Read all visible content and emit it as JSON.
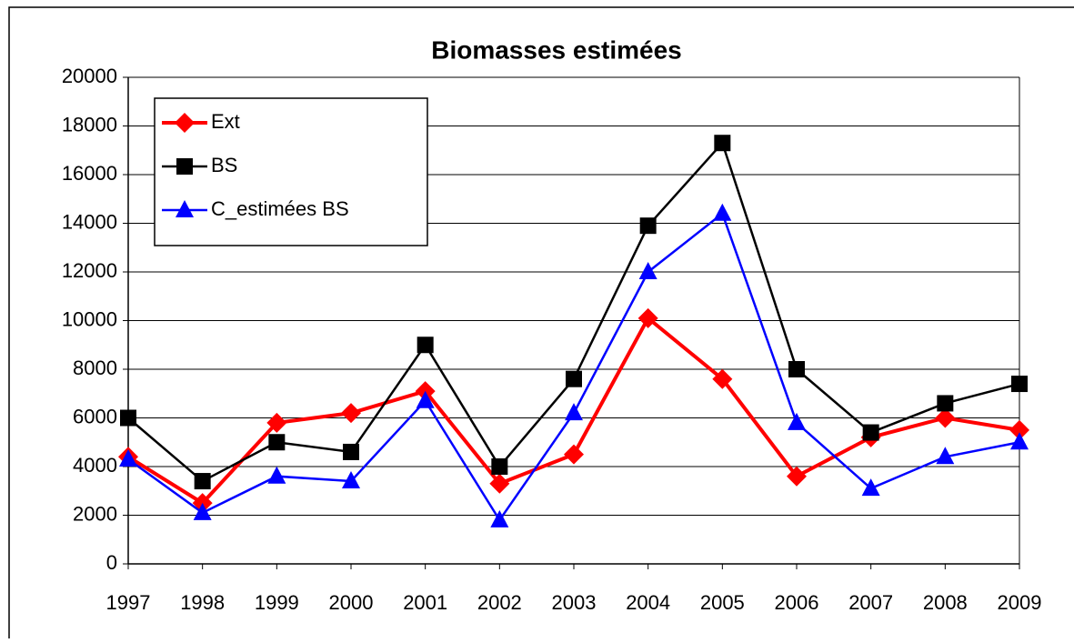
{
  "chart_data": {
    "type": "line",
    "title": "Biomasses estimées",
    "categories": [
      "1997",
      "1998",
      "1999",
      "2000",
      "2001",
      "2002",
      "2003",
      "2004",
      "2005",
      "2006",
      "2007",
      "2008",
      "2009"
    ],
    "series": [
      {
        "name": "Ext",
        "color": "#ff0000",
        "marker": "diamond",
        "values": [
          4400,
          2500,
          5800,
          6200,
          7100,
          3300,
          4500,
          10100,
          7600,
          3600,
          5200,
          6000,
          5500
        ]
      },
      {
        "name": "BS",
        "color": "#000000",
        "marker": "square",
        "values": [
          6000,
          3400,
          5000,
          4600,
          9000,
          4000,
          7600,
          13900,
          17300,
          8000,
          5400,
          6600,
          7400
        ]
      },
      {
        "name": "C_estimées BS",
        "color": "#0000ff",
        "marker": "triangle",
        "values": [
          4300,
          2100,
          3600,
          3400,
          6700,
          1800,
          6200,
          12000,
          14400,
          5800,
          3100,
          4400,
          5000
        ]
      }
    ],
    "ylim": [
      0,
      20000
    ],
    "yticks": [
      0,
      2000,
      4000,
      6000,
      8000,
      10000,
      12000,
      14000,
      16000,
      18000,
      20000
    ],
    "grid": true,
    "legend": "upper-left"
  }
}
